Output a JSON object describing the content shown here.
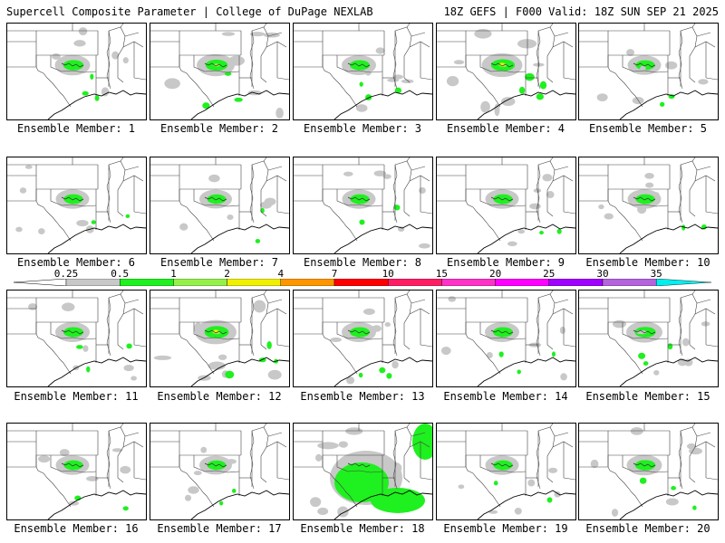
{
  "header": {
    "title": "Supercell Composite Parameter | College of DuPage NEXLAB",
    "run_info": "18Z GEFS | F000 Valid: 18Z SUN SEP 21 2025"
  },
  "member_label_prefix": "Ensemble Member: ",
  "members": [
    {
      "label": "Ensemble Member: 1",
      "intensity": 0.55
    },
    {
      "label": "Ensemble Member: 2",
      "intensity": 0.7
    },
    {
      "label": "Ensemble Member: 3",
      "intensity": 0.5
    },
    {
      "label": "Ensemble Member: 4",
      "intensity": 0.85
    },
    {
      "label": "Ensemble Member: 5",
      "intensity": 0.45
    },
    {
      "label": "Ensemble Member: 6",
      "intensity": 0.45
    },
    {
      "label": "Ensemble Member: 7",
      "intensity": 0.4
    },
    {
      "label": "Ensemble Member: 8",
      "intensity": 0.45
    },
    {
      "label": "Ensemble Member: 9",
      "intensity": 0.45
    },
    {
      "label": "Ensemble Member: 10",
      "intensity": 0.45
    },
    {
      "label": "Ensemble Member: 11",
      "intensity": 0.5
    },
    {
      "label": "Ensemble Member: 12",
      "intensity": 0.9
    },
    {
      "label": "Ensemble Member: 13",
      "intensity": 0.5
    },
    {
      "label": "Ensemble Member: 14",
      "intensity": 0.5
    },
    {
      "label": "Ensemble Member: 15",
      "intensity": 0.6
    },
    {
      "label": "Ensemble Member: 16",
      "intensity": 0.45
    },
    {
      "label": "Ensemble Member: 17",
      "intensity": 0.4
    },
    {
      "label": "Ensemble Member: 18",
      "intensity": 1.0
    },
    {
      "label": "Ensemble Member: 19",
      "intensity": 0.45
    },
    {
      "label": "Ensemble Member: 20",
      "intensity": 0.55
    }
  ],
  "colorbar": {
    "labels": [
      "0.25",
      "0.5",
      "1",
      "2",
      "4",
      "7",
      "10",
      "15",
      "20",
      "25",
      "30",
      "35"
    ],
    "colors": [
      "#c8c8c8",
      "#1ff01f",
      "#96f04b",
      "#f0f000",
      "#ff9600",
      "#ff0000",
      "#ff1e64",
      "#ff32c8",
      "#ff00ff",
      "#a000ff",
      "#b464dc",
      "#00f0f0"
    ]
  },
  "map": {
    "land_color": "#ffffff",
    "boundary_color": "#000000",
    "field_colors": {
      "light": "#c8c8c8",
      "low": "#1ff01f",
      "mid": "#96f04b",
      "high": "#f0f000"
    }
  }
}
